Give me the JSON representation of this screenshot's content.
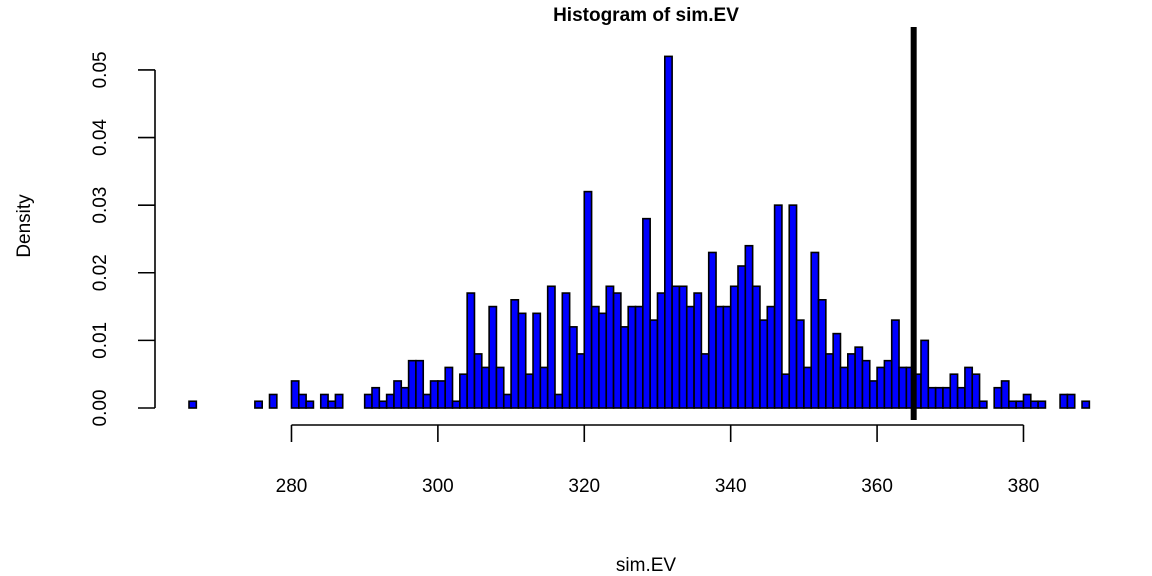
{
  "chart_data": {
    "type": "bar",
    "title": "Histogram of sim.EV",
    "xlabel": "sim.EV",
    "ylabel": "Density",
    "bin_start": 266,
    "bin_width": 1,
    "values": [
      0.001,
      0,
      0,
      0,
      0,
      0,
      0,
      0,
      0,
      0.001,
      0,
      0.002,
      0,
      0,
      0.004,
      0.002,
      0.001,
      0,
      0.002,
      0.001,
      0.002,
      0,
      0,
      0,
      0.002,
      0.003,
      0.001,
      0.002,
      0.004,
      0.003,
      0.007,
      0.007,
      0.002,
      0.004,
      0.004,
      0.006,
      0.001,
      0.005,
      0.017,
      0.008,
      0.006,
      0.015,
      0.006,
      0.002,
      0.016,
      0.014,
      0.005,
      0.014,
      0.006,
      0.018,
      0.002,
      0.017,
      0.012,
      0.008,
      0.032,
      0.015,
      0.014,
      0.018,
      0.017,
      0.012,
      0.015,
      0.015,
      0.028,
      0.013,
      0.017,
      0.052,
      0.018,
      0.018,
      0.015,
      0.017,
      0.008,
      0.023,
      0.015,
      0.015,
      0.018,
      0.021,
      0.024,
      0.018,
      0.013,
      0.015,
      0.03,
      0.005,
      0.03,
      0.013,
      0.006,
      0.023,
      0.016,
      0.008,
      0.011,
      0.006,
      0.008,
      0.009,
      0.007,
      0.004,
      0.006,
      0.007,
      0.013,
      0.006,
      0.006,
      0.005,
      0.01,
      0.003,
      0.003,
      0.003,
      0.005,
      0.003,
      0.006,
      0.005,
      0.001,
      0,
      0.003,
      0.004,
      0.001,
      0.001,
      0.002,
      0.001,
      0.001,
      0,
      0,
      0.002,
      0.002,
      0,
      0.001
    ],
    "xlim": [
      266,
      390
    ],
    "ylim": [
      0,
      0.052
    ],
    "x_ticks": [
      280,
      300,
      320,
      340,
      360,
      380
    ],
    "x_tick_labels": [
      "280",
      "300",
      "320",
      "340",
      "360",
      "380"
    ],
    "y_ticks": [
      0,
      0.01,
      0.02,
      0.03,
      0.04,
      0.05
    ],
    "y_tick_labels": [
      "0.00",
      "0.01",
      "0.02",
      "0.03",
      "0.04",
      "0.05"
    ],
    "reference_line_x": 365,
    "bar_fill": "#0000ff",
    "bar_stroke": "#000000",
    "reference_line_color": "#000000",
    "grid": false
  }
}
